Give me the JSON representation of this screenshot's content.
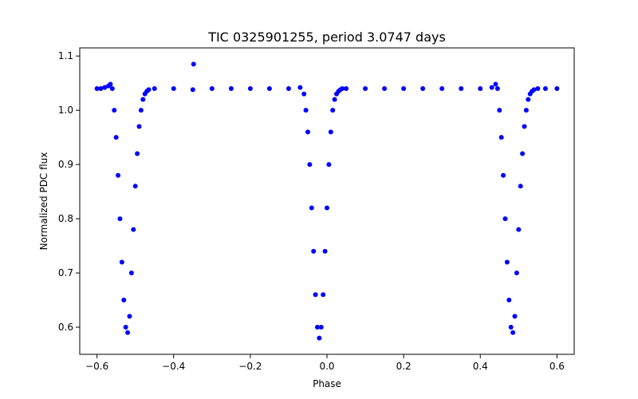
{
  "chart_data": {
    "type": "scatter",
    "title": "TIC 0325901255, period 3.0747 days",
    "xlabel": "Phase",
    "ylabel": "Normalized PDC flux",
    "xlim": [
      -0.645,
      0.645
    ],
    "ylim": [
      0.55,
      1.115
    ],
    "xticks": [
      -0.6,
      -0.4,
      -0.2,
      0.0,
      0.2,
      0.4,
      0.6
    ],
    "xtick_labels": [
      "−0.6",
      "−0.4",
      "−0.2",
      "0.0",
      "0.2",
      "0.4",
      "0.6"
    ],
    "yticks": [
      0.6,
      0.7,
      0.8,
      0.9,
      1.0,
      1.1
    ],
    "ytick_labels": [
      "0.6",
      "0.7",
      "0.8",
      "0.9",
      "1.0",
      "1.1"
    ],
    "grid": false,
    "series": [
      {
        "color": "#0000ff",
        "marker": "circle",
        "x": [
          -0.6,
          -0.59,
          -0.58,
          -0.57,
          -0.565,
          -0.56,
          -0.555,
          -0.55,
          -0.545,
          -0.54,
          -0.535,
          -0.53,
          -0.525,
          -0.52,
          -0.515,
          -0.51,
          -0.505,
          -0.5,
          -0.495,
          -0.49,
          -0.485,
          -0.48,
          -0.475,
          -0.47,
          -0.465,
          -0.45,
          -0.4,
          -0.35,
          -0.3,
          -0.25,
          -0.2,
          -0.15,
          -0.1,
          -0.07,
          -0.06,
          -0.055,
          -0.05,
          -0.045,
          -0.04,
          -0.035,
          -0.03,
          -0.025,
          -0.02,
          -0.015,
          -0.01,
          -0.005,
          0.0,
          0.005,
          0.01,
          0.015,
          0.02,
          0.025,
          0.03,
          0.035,
          0.04,
          0.05,
          0.1,
          0.15,
          0.2,
          0.25,
          0.3,
          0.35,
          0.4,
          0.43,
          0.44,
          0.445,
          0.45,
          0.455,
          0.46,
          0.465,
          0.47,
          0.475,
          0.48,
          0.485,
          0.49,
          0.495,
          0.5,
          0.505,
          0.51,
          0.515,
          0.52,
          0.525,
          0.53,
          0.535,
          0.54,
          0.55,
          0.57,
          0.6,
          -0.348
        ],
        "y": [
          1.04,
          1.04,
          1.042,
          1.045,
          1.048,
          1.04,
          1.0,
          0.95,
          0.88,
          0.8,
          0.72,
          0.65,
          0.6,
          0.59,
          0.62,
          0.7,
          0.78,
          0.86,
          0.92,
          0.97,
          1.0,
          1.02,
          1.03,
          1.035,
          1.038,
          1.04,
          1.04,
          1.038,
          1.04,
          1.04,
          1.04,
          1.04,
          1.04,
          1.042,
          1.03,
          1.0,
          0.96,
          0.9,
          0.82,
          0.74,
          0.66,
          0.6,
          0.58,
          0.6,
          0.66,
          0.74,
          0.82,
          0.9,
          0.96,
          1.0,
          1.02,
          1.03,
          1.035,
          1.038,
          1.04,
          1.04,
          1.04,
          1.04,
          1.04,
          1.04,
          1.04,
          1.04,
          1.04,
          1.042,
          1.048,
          1.04,
          1.0,
          0.95,
          0.88,
          0.8,
          0.72,
          0.65,
          0.6,
          0.59,
          0.62,
          0.7,
          0.78,
          0.86,
          0.92,
          0.97,
          1.0,
          1.02,
          1.03,
          1.035,
          1.038,
          1.04,
          1.04,
          1.04,
          1.085
        ]
      }
    ]
  }
}
